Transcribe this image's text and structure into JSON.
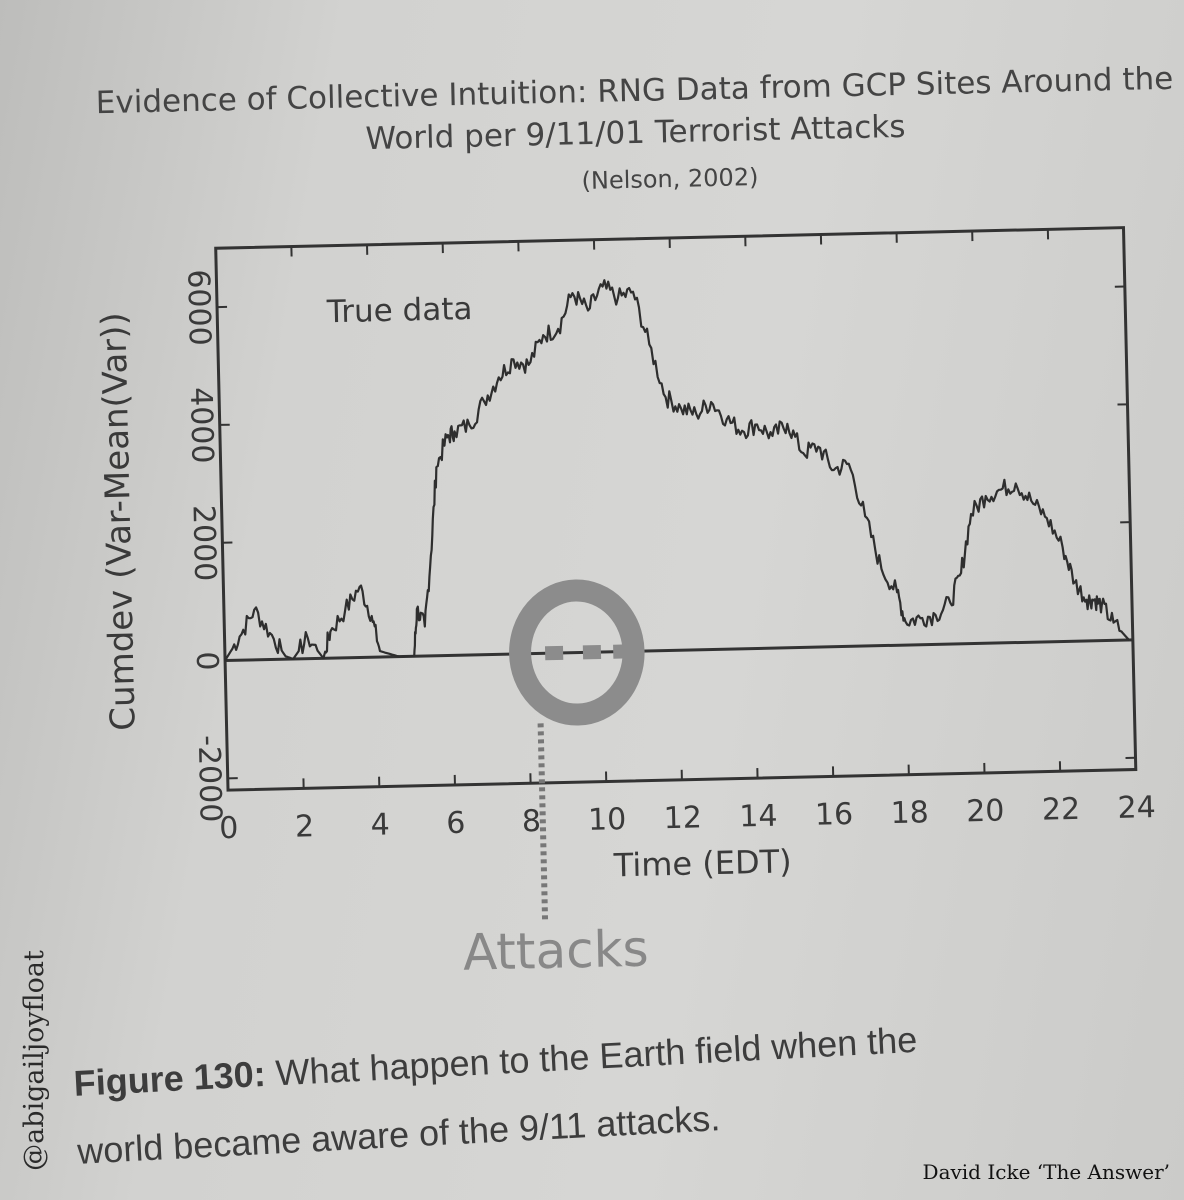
{
  "chart_data": {
    "type": "line",
    "title": "Evidence of Collective Intuition: RNG Data from GCP Sites Around the World per 9/11/01 Terrorist Attacks",
    "subtitle": "(Nelson, 2002)",
    "xlabel": "Time (EDT)",
    "ylabel": "Cumdev (Var-Mean(Var))",
    "xlim": [
      0,
      24
    ],
    "ylim": [
      -2200,
      7000
    ],
    "x_ticks": [
      "0",
      "2",
      "4",
      "6",
      "8",
      "10",
      "12",
      "14",
      "16",
      "18",
      "20",
      "22",
      "24"
    ],
    "y_ticks": [
      "-2000",
      "0",
      "2000",
      "4000",
      "6000"
    ],
    "annotations": {
      "series_label": "True data",
      "event_label": "Attacks"
    },
    "series": [
      {
        "name": "True data",
        "x": [
          0,
          0.4,
          0.8,
          1.2,
          1.6,
          1.8,
          2.2,
          2.6,
          2.8,
          3.2,
          3.6,
          3.9,
          4.1,
          4.6,
          5.0,
          5.1,
          5.3,
          5.5,
          5.7,
          6.0,
          6.2,
          6.6,
          7.0,
          7.4,
          7.8,
          8.2,
          8.6,
          9.0,
          9.4,
          9.8,
          10.2,
          10.6,
          11.0,
          11.4,
          11.8,
          12.2,
          12.6,
          13.0,
          13.4,
          13.8,
          14.2,
          14.6,
          15.0,
          15.4,
          15.8,
          16.2,
          16.6,
          17.0,
          17.4,
          17.8,
          18.0,
          18.4,
          18.8,
          19.2,
          19.5,
          19.8,
          20.2,
          20.6,
          21.0,
          21.4,
          21.8,
          22.2,
          22.5,
          22.8,
          23.0,
          23.2,
          23.5,
          23.9
        ],
        "y": [
          0,
          400,
          850,
          450,
          50,
          0,
          350,
          0,
          450,
          800,
          1200,
          700,
          100,
          0,
          0,
          800,
          500,
          1700,
          3200,
          3700,
          3800,
          3900,
          4300,
          4700,
          5000,
          4900,
          5400,
          5500,
          6100,
          5800,
          6200,
          6000,
          6100,
          5200,
          4300,
          4100,
          4000,
          4200,
          3900,
          3700,
          3800,
          3600,
          3800,
          3300,
          3400,
          3000,
          3100,
          2200,
          1300,
          900,
          400,
          450,
          500,
          700,
          1200,
          2200,
          2500,
          2600,
          2700,
          2400,
          2100,
          1600,
          1000,
          700,
          700,
          600,
          300,
          0
        ]
      }
    ],
    "highlight": {
      "x_range": [
        7.8,
        10.8
      ],
      "shape": "ellipse",
      "markers_x": [
        8.7,
        9.7,
        10.5
      ]
    }
  },
  "caption": {
    "figure_label": "Figure 130:",
    "text_line1": "What happen to the Earth field when the",
    "text_line2": "world became aware of the 9/11 attacks."
  },
  "watermark": "@abigailjoyfloat",
  "credit": "David Icke ‘The Answer’"
}
